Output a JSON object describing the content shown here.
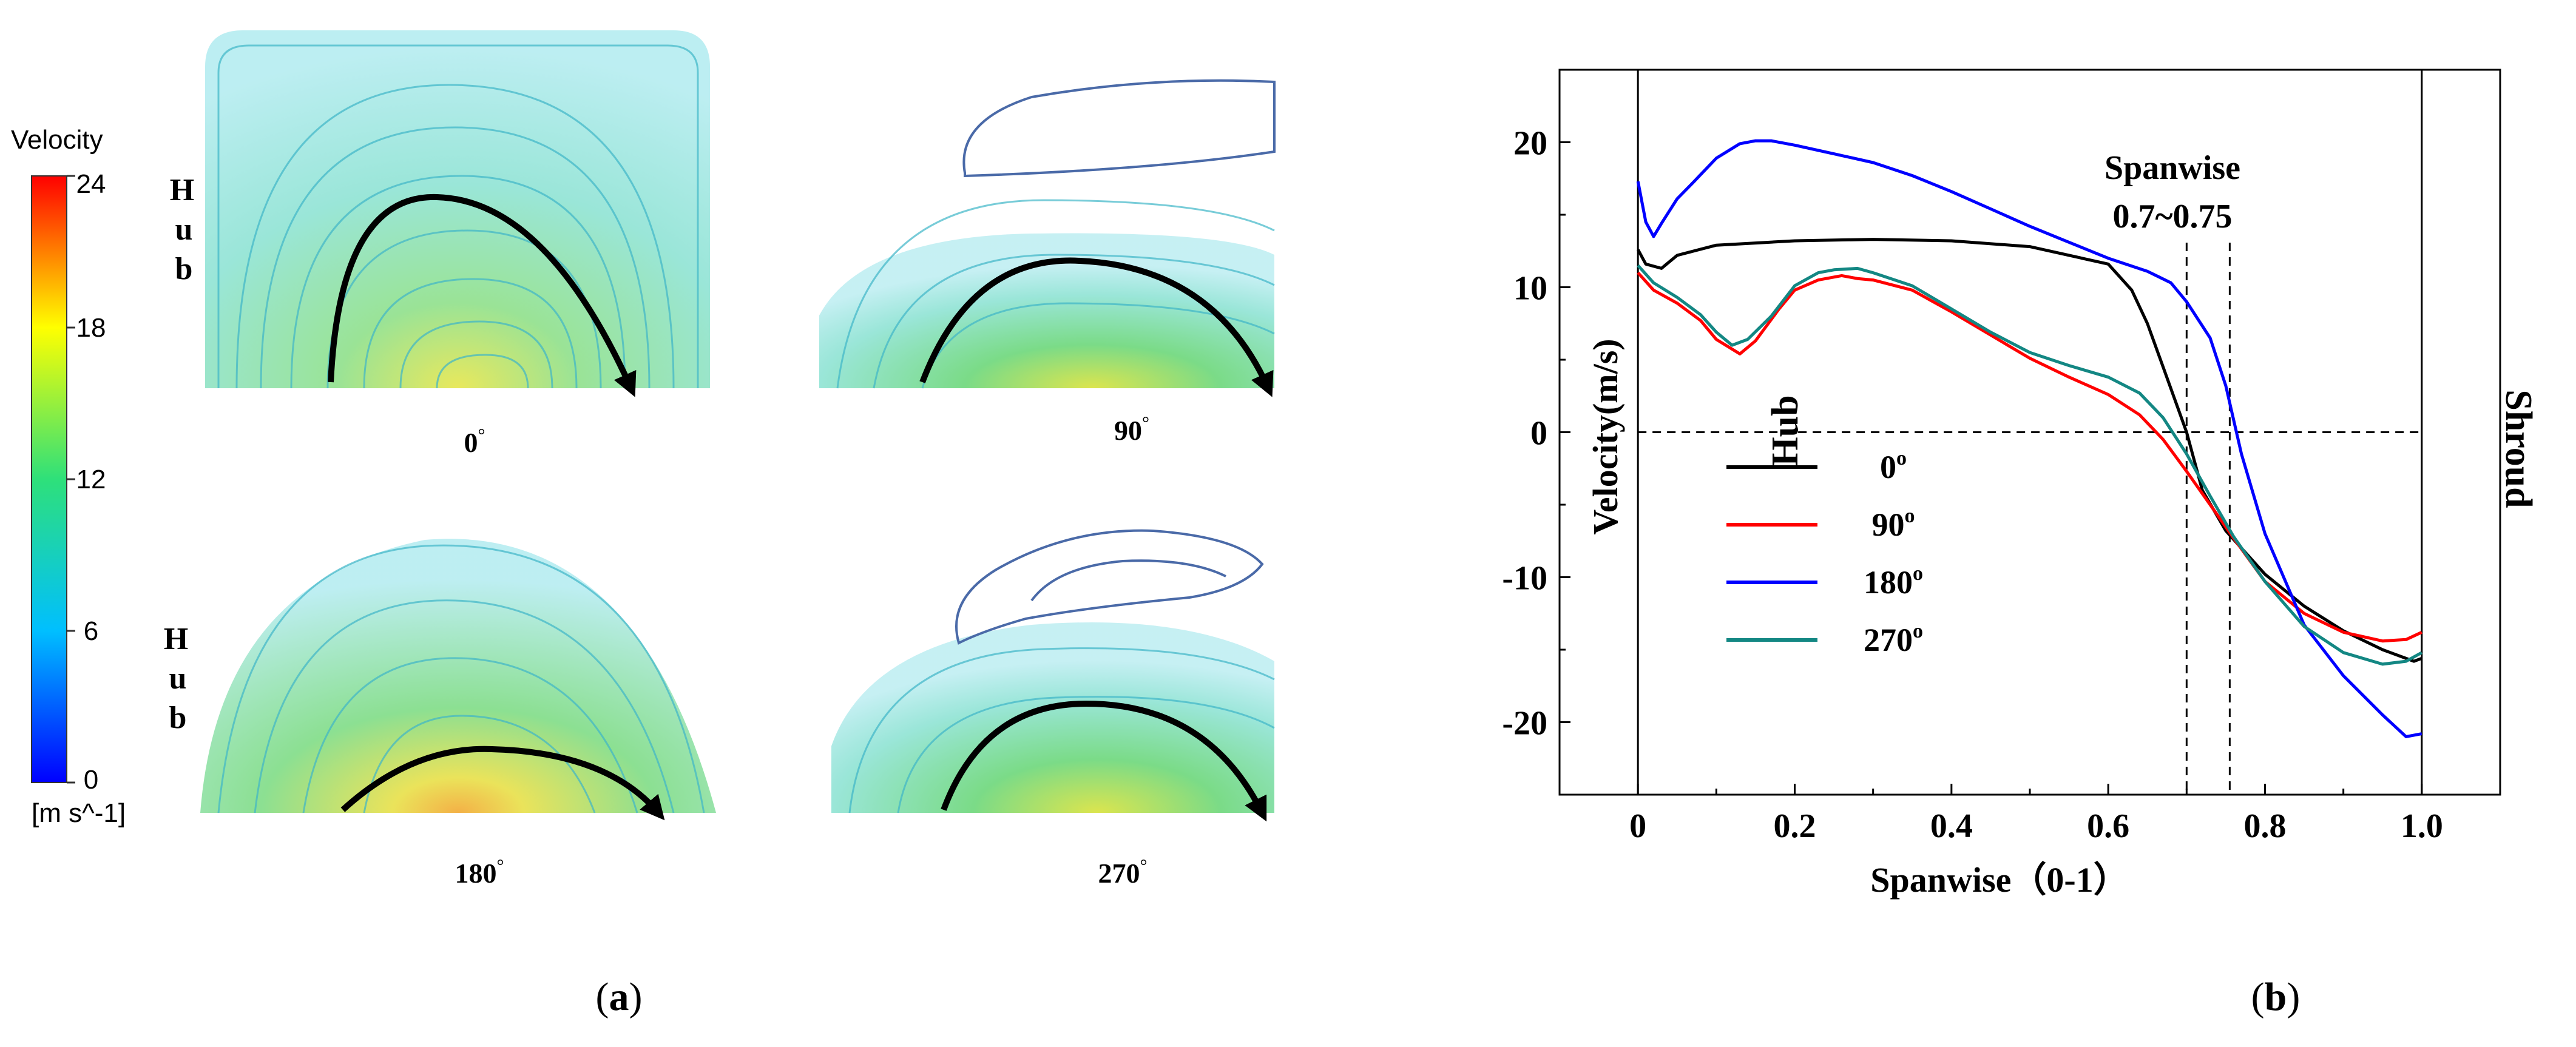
{
  "panel_a": {
    "colorbar": {
      "title": "Velocity",
      "unit": "[m s^-1]",
      "ticks": [
        "24",
        "18",
        "12",
        "6",
        "0"
      ],
      "min": 0,
      "max": 24,
      "colors": [
        "#0000ff",
        "#00bfff",
        "#2ee07a",
        "#ffff00",
        "#ff0000"
      ]
    },
    "hub_label_letters": [
      "H",
      "u",
      "b"
    ],
    "subplots": [
      {
        "label": "0",
        "degree_mark": "°"
      },
      {
        "label": "90",
        "degree_mark": "°"
      },
      {
        "label": "180",
        "degree_mark": "°"
      },
      {
        "label": "270",
        "degree_mark": "°"
      }
    ],
    "caption": "(a)",
    "caption_letter": "a"
  },
  "panel_b": {
    "caption": "(b)",
    "caption_letter": "b",
    "left_label": "Hub",
    "right_label": "Shroud",
    "annotation_line1": "Spanwise",
    "annotation_line2": "0.7~0.75"
  },
  "chart_data": {
    "type": "line",
    "xlabel": "Spanwise（0-1）",
    "ylabel": "Velocity(m/s)",
    "xlim": [
      -0.1,
      1.1
    ],
    "ylim": [
      -25,
      25
    ],
    "x_ticks": [
      0,
      0.2,
      0.4,
      0.6,
      0.8,
      1.0
    ],
    "x_tick_labels": [
      "0",
      "0.2",
      "0.4",
      "0.6",
      "0.8",
      "1.0"
    ],
    "y_ticks": [
      -20,
      -10,
      0,
      10,
      20
    ],
    "y_tick_labels": [
      "-20",
      "-10",
      "0",
      "10",
      "20"
    ],
    "reference_lines": {
      "horizontal_y": 0,
      "vertical_x": [
        0.7,
        0.755
      ]
    },
    "legend_placement": "lower-left",
    "series": [
      {
        "name": "0",
        "sup": "o",
        "color": "#000000",
        "x": [
          0,
          0.01,
          0.03,
          0.05,
          0.1,
          0.2,
          0.3,
          0.4,
          0.5,
          0.6,
          0.63,
          0.65,
          0.67,
          0.7,
          0.72,
          0.75,
          0.8,
          0.85,
          0.9,
          0.95,
          0.99,
          1.0
        ],
        "y": [
          12.6,
          11.6,
          11.3,
          12.2,
          12.9,
          13.2,
          13.3,
          13.2,
          12.8,
          11.6,
          9.8,
          7.5,
          4.5,
          0.0,
          -4.0,
          -6.8,
          -9.8,
          -12.0,
          -13.7,
          -15.0,
          -15.8,
          -15.6
        ]
      },
      {
        "name": "90",
        "sup": "o",
        "color": "#ff0000",
        "x": [
          0,
          0.02,
          0.05,
          0.08,
          0.1,
          0.13,
          0.15,
          0.18,
          0.2,
          0.23,
          0.26,
          0.28,
          0.3,
          0.35,
          0.4,
          0.45,
          0.5,
          0.55,
          0.6,
          0.64,
          0.67,
          0.7,
          0.73,
          0.76,
          0.8,
          0.85,
          0.9,
          0.95,
          0.98,
          1.0
        ],
        "y": [
          11.0,
          9.8,
          8.9,
          7.7,
          6.4,
          5.4,
          6.3,
          8.5,
          9.8,
          10.5,
          10.8,
          10.6,
          10.5,
          9.8,
          8.3,
          6.7,
          5.1,
          3.8,
          2.6,
          1.2,
          -0.5,
          -2.7,
          -5.0,
          -7.3,
          -10.3,
          -12.5,
          -13.8,
          -14.4,
          -14.3,
          -13.8
        ]
      },
      {
        "name": "180",
        "sup": "o",
        "color": "#0000ff",
        "x": [
          0,
          0.01,
          0.02,
          0.03,
          0.05,
          0.07,
          0.1,
          0.13,
          0.15,
          0.17,
          0.2,
          0.25,
          0.3,
          0.35,
          0.4,
          0.45,
          0.5,
          0.55,
          0.6,
          0.65,
          0.68,
          0.7,
          0.73,
          0.75,
          0.77,
          0.8,
          0.85,
          0.9,
          0.95,
          0.98,
          1.0
        ],
        "y": [
          17.3,
          14.5,
          13.5,
          14.4,
          16.1,
          17.2,
          18.9,
          19.9,
          20.1,
          20.1,
          19.8,
          19.2,
          18.6,
          17.7,
          16.6,
          15.4,
          14.2,
          13.1,
          12.0,
          11.1,
          10.3,
          9.0,
          6.5,
          3.2,
          -1.5,
          -7.0,
          -13.3,
          -16.8,
          -19.5,
          -21.0,
          -20.8
        ]
      },
      {
        "name": "270",
        "sup": "o",
        "color": "#138783",
        "x": [
          0,
          0.02,
          0.05,
          0.08,
          0.1,
          0.12,
          0.14,
          0.17,
          0.2,
          0.23,
          0.25,
          0.28,
          0.3,
          0.35,
          0.4,
          0.45,
          0.5,
          0.55,
          0.6,
          0.64,
          0.67,
          0.7,
          0.73,
          0.76,
          0.8,
          0.85,
          0.9,
          0.95,
          0.98,
          1.0
        ],
        "y": [
          11.5,
          10.3,
          9.3,
          8.1,
          6.9,
          6.0,
          6.4,
          8.0,
          10.1,
          11.0,
          11.2,
          11.3,
          11.0,
          10.1,
          8.5,
          6.9,
          5.5,
          4.6,
          3.8,
          2.7,
          1.0,
          -1.5,
          -4.4,
          -7.2,
          -10.3,
          -13.4,
          -15.2,
          -16.0,
          -15.8,
          -15.2
        ]
      }
    ]
  }
}
